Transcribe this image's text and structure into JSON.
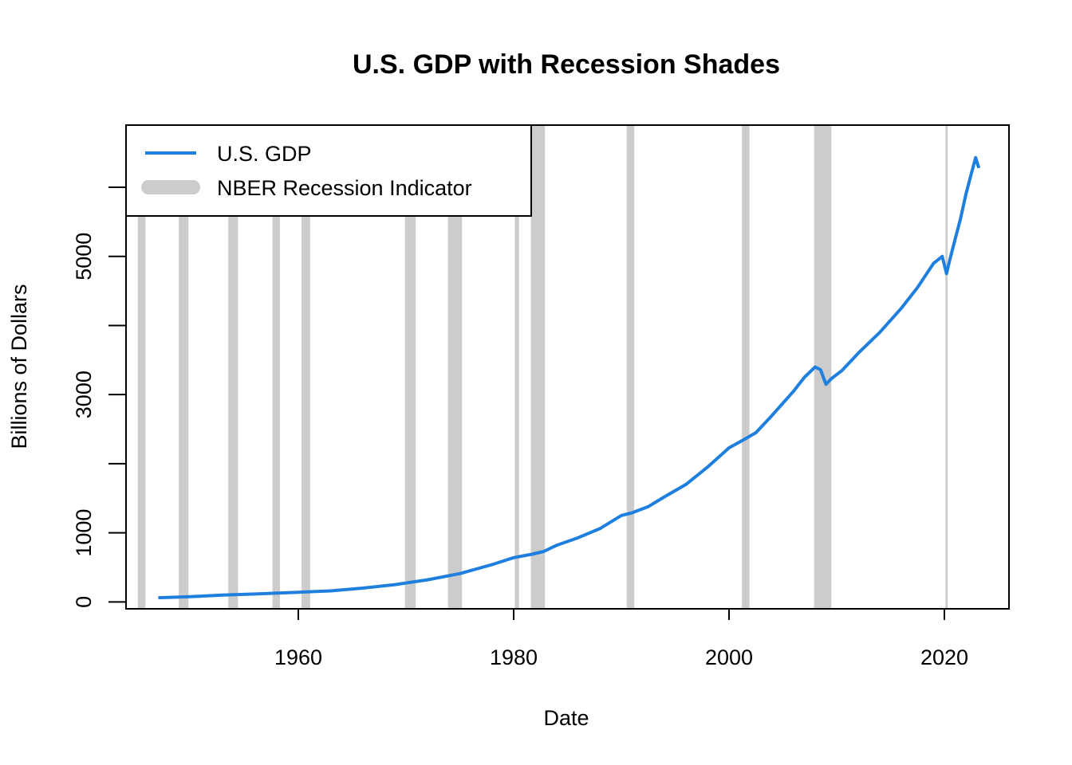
{
  "chart_data": {
    "type": "line",
    "title": "U.S. GDP with Recession Shades",
    "xlabel": "Date",
    "ylabel": "Billions of Dollars",
    "xlim": [
      1944,
      2026
    ],
    "ylim": [
      -100,
      6900
    ],
    "x_ticks": [
      1960,
      1980,
      2000,
      2020
    ],
    "y_ticks": [
      0,
      1000,
      2000,
      3000,
      4000,
      5000,
      6000
    ],
    "y_tick_labels": [
      "0",
      "1000",
      "",
      "3000",
      "",
      "5000",
      ""
    ],
    "grid": false,
    "legend": {
      "position": "top-left",
      "entries": [
        {
          "label": "U.S. GDP",
          "color": "#1E7FDE",
          "style": "line"
        },
        {
          "label": "NBER Recession Indicator",
          "color": "#CCCCCC",
          "style": "thick"
        }
      ]
    },
    "series": [
      {
        "name": "U.S. GDP",
        "color": "#1E7FDE",
        "points": [
          [
            1947.0,
            60
          ],
          [
            1950.0,
            75
          ],
          [
            1953.0,
            100
          ],
          [
            1956.0,
            115
          ],
          [
            1960.0,
            140
          ],
          [
            1963.0,
            160
          ],
          [
            1966.0,
            200
          ],
          [
            1969.0,
            250
          ],
          [
            1972.0,
            320
          ],
          [
            1975.0,
            410
          ],
          [
            1978.0,
            540
          ],
          [
            1980.0,
            640
          ],
          [
            1981.7,
            690
          ],
          [
            1982.8,
            730
          ],
          [
            1984.0,
            820
          ],
          [
            1986.0,
            930
          ],
          [
            1988.0,
            1060
          ],
          [
            1990.0,
            1250
          ],
          [
            1991.0,
            1290
          ],
          [
            1992.5,
            1380
          ],
          [
            1994.0,
            1520
          ],
          [
            1996.0,
            1700
          ],
          [
            1998.0,
            1950
          ],
          [
            2000.0,
            2230
          ],
          [
            2001.5,
            2360
          ],
          [
            2002.5,
            2450
          ],
          [
            2004.0,
            2700
          ],
          [
            2006.0,
            3050
          ],
          [
            2007.0,
            3250
          ],
          [
            2008.0,
            3400
          ],
          [
            2008.5,
            3360
          ],
          [
            2009.0,
            3150
          ],
          [
            2009.5,
            3230
          ],
          [
            2010.5,
            3350
          ],
          [
            2012.0,
            3600
          ],
          [
            2014.0,
            3900
          ],
          [
            2016.0,
            4250
          ],
          [
            2017.5,
            4550
          ],
          [
            2019.0,
            4900
          ],
          [
            2019.8,
            5000
          ],
          [
            2020.2,
            4750
          ],
          [
            2020.5,
            4950
          ],
          [
            2021.0,
            5250
          ],
          [
            2021.5,
            5550
          ],
          [
            2022.0,
            5900
          ],
          [
            2022.5,
            6200
          ],
          [
            2022.9,
            6430
          ],
          [
            2023.2,
            6280
          ]
        ]
      }
    ],
    "recessions": [
      [
        1945.1,
        1945.8
      ],
      [
        1948.9,
        1949.8
      ],
      [
        1953.5,
        1954.4
      ],
      [
        1957.6,
        1958.3
      ],
      [
        1960.3,
        1961.1
      ],
      [
        1969.9,
        1970.9
      ],
      [
        1973.9,
        1975.2
      ],
      [
        1980.1,
        1980.5
      ],
      [
        1981.6,
        1982.9
      ],
      [
        1990.5,
        1991.2
      ],
      [
        2001.2,
        2001.9
      ],
      [
        2007.9,
        2009.5
      ],
      [
        2020.1,
        2020.3
      ]
    ]
  }
}
